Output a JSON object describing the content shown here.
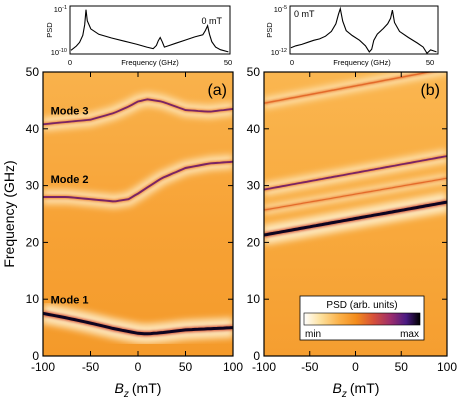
{
  "chart_data": [
    {
      "type": "line",
      "panel": "inset-a",
      "title": "",
      "annotation": "0 mT",
      "xlabel": "Frequency (GHz)",
      "ylabel": "PSD",
      "xlim": [
        0,
        50
      ],
      "ylim_exponents": [
        -10,
        -1
      ],
      "log_y": true,
      "x_ticks": [
        "0",
        "50"
      ],
      "y_ticks": [
        "10^-1",
        "10^-10"
      ],
      "series": [
        {
          "x": [
            0.3,
            2,
            3,
            4,
            4.6,
            5,
            5.4,
            6.5,
            9,
            13,
            17,
            21,
            24,
            26,
            27,
            27.6,
            28.2,
            28.8,
            29.5,
            31,
            33,
            36,
            39,
            41.5,
            42.3,
            43,
            43.6,
            44.3,
            45.5,
            47,
            49.5
          ],
          "y": [
            -9.3,
            -8.5,
            -7.8,
            -6.5,
            -4.5,
            -1.7,
            -3.8,
            -5.3,
            -6.3,
            -7.0,
            -7.6,
            -8.2,
            -8.7,
            -9.0,
            -8.4,
            -7.5,
            -6.9,
            -7.7,
            -8.7,
            -8.4,
            -8.0,
            -7.4,
            -6.8,
            -6.4,
            -5.6,
            -4.7,
            -6.3,
            -7.7,
            -8.7,
            -9.2,
            -9.6
          ]
        }
      ]
    },
    {
      "type": "line",
      "panel": "inset-b",
      "title": "",
      "annotation": "0 mT",
      "xlabel": "Frequency (GHz)",
      "ylabel": "PSD",
      "xlim": [
        0,
        50
      ],
      "ylim_exponents": [
        -12,
        -5
      ],
      "log_y": true,
      "x_ticks": [
        "0",
        "50"
      ],
      "y_ticks": [
        "10^-5",
        "10^-12"
      ],
      "series": [
        {
          "x": [
            0.3,
            2,
            4,
            6,
            8,
            10,
            12,
            14,
            15.5,
            16.4,
            17,
            17.8,
            19,
            21,
            23.5,
            25.5,
            26.8,
            27.6,
            28.3,
            29.5,
            31.5,
            33,
            34,
            34.6,
            35.3,
            37,
            40,
            43,
            45,
            46.3,
            47.5,
            49.5
          ],
          "y": [
            -11.1,
            -10.8,
            -10.6,
            -10.3,
            -10.0,
            -9.8,
            -9.4,
            -8.7,
            -7.6,
            -6.2,
            -5.4,
            -7.2,
            -8.6,
            -9.3,
            -10.0,
            -10.8,
            -11.7,
            -11.3,
            -10.0,
            -9.1,
            -8.3,
            -7.6,
            -6.8,
            -5.6,
            -7.4,
            -8.7,
            -9.6,
            -10.4,
            -11.0,
            -11.9,
            -11.4,
            -11.7
          ]
        }
      ]
    },
    {
      "type": "heatmap",
      "panel": "(a)",
      "xlabel_symbol": "B",
      "xlabel_subscript": "z",
      "xlabel_unit": "(mT)",
      "ylabel": "Frequency (GHz)",
      "xlim": [
        -100,
        100
      ],
      "ylim": [
        0,
        50
      ],
      "x_ticks": [
        -100,
        -50,
        0,
        50,
        100
      ],
      "y_ticks": [
        0,
        10,
        20,
        30,
        40,
        50
      ],
      "mode_labels": [
        {
          "text": "Mode 3",
          "x": -72,
          "y": 42.5
        },
        {
          "text": "Mode 2",
          "x": -72,
          "y": 30.5
        },
        {
          "text": "Mode 1",
          "x": -72,
          "y": 9.2
        }
      ],
      "modes": [
        {
          "name": "Mode 1",
          "intensity": 1.0,
          "x": [
            -100,
            -75,
            -50,
            -25,
            0,
            10,
            25,
            50,
            75,
            100
          ],
          "y": [
            7.5,
            6.7,
            5.8,
            4.8,
            4.0,
            3.9,
            4.1,
            4.6,
            4.8,
            5.0
          ]
        },
        {
          "name": "Mode 2",
          "intensity": 0.6,
          "x": [
            -100,
            -75,
            -50,
            -25,
            -10,
            0,
            10,
            25,
            50,
            75,
            100
          ],
          "y": [
            28.0,
            28.0,
            27.6,
            27.2,
            27.6,
            28.6,
            29.7,
            31.3,
            33.1,
            33.9,
            34.2
          ]
        },
        {
          "name": "Mode 3",
          "intensity": 0.55,
          "x": [
            -100,
            -75,
            -50,
            -25,
            -10,
            0,
            10,
            25,
            50,
            75,
            100
          ],
          "y": [
            40.8,
            41.2,
            41.6,
            42.8,
            43.9,
            44.8,
            45.2,
            44.8,
            43.3,
            43.0,
            43.5
          ]
        }
      ]
    },
    {
      "type": "heatmap",
      "panel": "(b)",
      "xlabel_symbol": "B",
      "xlabel_subscript": "z",
      "xlabel_unit": "(mT)",
      "ylabel": "",
      "xlim": [
        -100,
        100
      ],
      "ylim": [
        0,
        50
      ],
      "x_ticks": [
        -100,
        -50,
        0,
        50,
        100
      ],
      "y_ticks": [
        0,
        10,
        20,
        30,
        40,
        50
      ],
      "modes": [
        {
          "name": "",
          "intensity": 1.0,
          "x": [
            -100,
            100
          ],
          "y": [
            21.3,
            27.1
          ]
        },
        {
          "name": "",
          "intensity": 0.55,
          "x": [
            -100,
            100
          ],
          "y": [
            29.3,
            35.2
          ]
        },
        {
          "name": "",
          "intensity": 0.3,
          "x": [
            -100,
            100
          ],
          "y": [
            25.7,
            31.3
          ]
        },
        {
          "name": "",
          "intensity": 0.4,
          "x": [
            -100,
            100
          ],
          "y": [
            44.5,
            50.6
          ]
        }
      ],
      "colorbar": {
        "title": "PSD (arb. units)",
        "min_label": "min",
        "max_label": "max",
        "colors": [
          "#ffffff",
          "#fde2a0",
          "#fbb24a",
          "#f38c1c",
          "#d6503a",
          "#9b2d6d",
          "#4a1b83",
          "#000000"
        ]
      }
    }
  ]
}
